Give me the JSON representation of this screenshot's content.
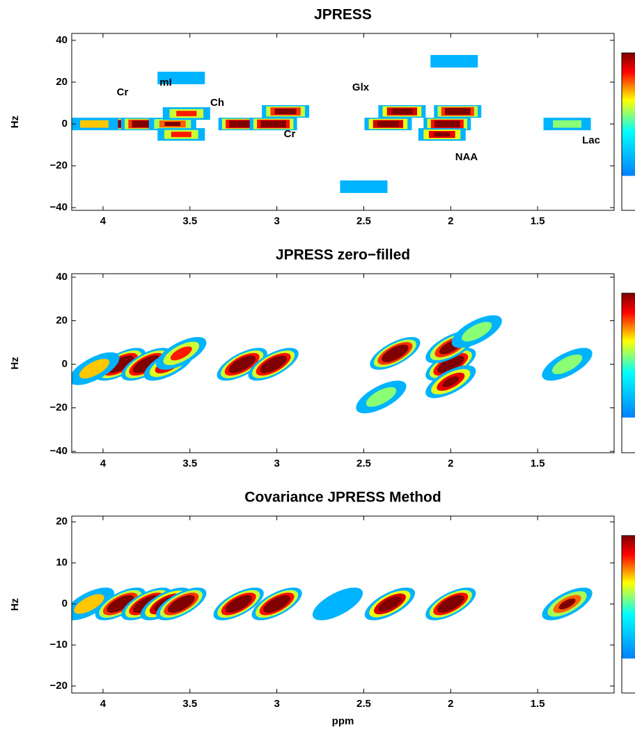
{
  "chart_data": [
    {
      "type": "spectrum",
      "style": "blocks",
      "title": "JPRESS",
      "ylabel": "Hz",
      "xlim": [
        4.18,
        1.06
      ],
      "ylim": [
        -41.3,
        43.3
      ],
      "xticks": [
        4,
        3.5,
        3,
        2.5,
        2,
        1.5
      ],
      "yticks": [
        {
          "value": -40,
          "label": "−40"
        },
        {
          "value": -20,
          "label": "−20"
        },
        0,
        20,
        40
      ],
      "annotations": [
        "Cr",
        "mI",
        "Ch",
        "Cr",
        "Glx",
        "NAA",
        "Lac"
      ],
      "x": [
        3.92,
        3.76,
        3.6,
        3.52,
        3.55,
        3.2,
        3.02,
        2.95,
        2.36,
        2.28,
        2.02,
        1.96,
        2.05,
        1.33,
        4.05,
        2.5,
        1.98,
        3.55
      ],
      "y": [
        0,
        0,
        0,
        5,
        -5,
        0,
        0,
        6,
        0,
        6,
        0,
        6,
        -5,
        0,
        0,
        -30,
        30,
        22
      ],
      "values": [
        1,
        0.95,
        0.6,
        0.5,
        0.5,
        1,
        1,
        0.8,
        0.9,
        0.9,
        1,
        0.95,
        0.7,
        0.3,
        0.4,
        0.2,
        0.2,
        0.2
      ]
    },
    {
      "type": "spectrum",
      "style": "contours",
      "title": "JPRESS zero−filled",
      "ylabel": "Hz",
      "xlim": [
        4.18,
        1.06
      ],
      "ylim": [
        -40.6,
        41.6
      ],
      "xticks": [
        4,
        3.5,
        3,
        2.5,
        2,
        1.5
      ],
      "yticks": [
        {
          "value": -40,
          "label": "−40"
        },
        {
          "value": -20,
          "label": "−20"
        },
        0,
        20,
        40
      ],
      "x": [
        3.9,
        3.75,
        3.62,
        3.55,
        3.2,
        3.02,
        2.32,
        2.0,
        2.0,
        2.0,
        1.33,
        4.05,
        2.4,
        1.85
      ],
      "y": [
        0,
        0,
        0,
        5,
        0,
        0,
        5,
        0,
        8,
        -8,
        0,
        -2,
        -15,
        15
      ],
      "values": [
        1,
        1,
        0.7,
        0.5,
        1,
        1,
        0.95,
        1,
        0.8,
        0.7,
        0.3,
        0.4,
        0.3,
        0.3
      ]
    },
    {
      "type": "spectrum",
      "style": "contours",
      "title": "Covariance JPRESS Method",
      "ylabel": "Hz",
      "xlabel": "ppm",
      "xlim": [
        4.18,
        1.06
      ],
      "ylim": [
        -21.7,
        21.4
      ],
      "xticks": [
        4,
        3.5,
        3,
        2.5,
        2,
        1.5
      ],
      "yticks": [
        {
          "value": -20,
          "label": "−20"
        },
        {
          "value": -10,
          "label": "−10"
        },
        0,
        10,
        20
      ],
      "x": [
        4.08,
        3.9,
        3.75,
        3.64,
        3.55,
        3.22,
        3.0,
        2.65,
        2.35,
        2.0,
        1.33
      ],
      "y": [
        0,
        0,
        0,
        0,
        0,
        0,
        0,
        0,
        0,
        0,
        0
      ],
      "values": [
        0.4,
        0.95,
        1,
        0.9,
        0.95,
        1,
        1,
        0.2,
        0.9,
        1,
        0.6
      ]
    }
  ]
}
